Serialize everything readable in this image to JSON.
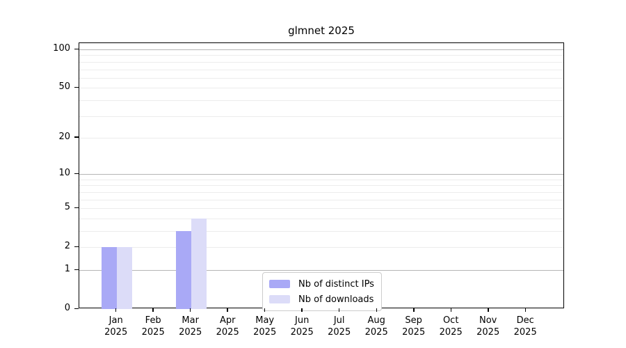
{
  "chart_data": {
    "type": "bar",
    "title": "glmnet 2025",
    "year": "2025",
    "categories": [
      "Jan",
      "Feb",
      "Mar",
      "Apr",
      "May",
      "Jun",
      "Jul",
      "Aug",
      "Sep",
      "Oct",
      "Nov",
      "Dec"
    ],
    "series": [
      {
        "name": "Nb of distinct IPs",
        "color": "#a9a9f6",
        "values": [
          2,
          0,
          3,
          0,
          0,
          0,
          0,
          0,
          0,
          0,
          0,
          0
        ]
      },
      {
        "name": "Nb of downloads",
        "color": "#dcdcf8",
        "values": [
          2,
          0,
          4,
          0,
          0,
          0,
          0,
          0,
          0,
          0,
          0,
          0
        ]
      }
    ],
    "yscale": "log1p",
    "ylim": [
      0,
      100
    ],
    "ytick_labels": [
      100,
      50,
      20,
      10,
      5,
      2,
      1,
      0
    ],
    "major_gridlines": [
      1,
      10,
      100
    ],
    "minor_gridlines": [
      2,
      3,
      4,
      5,
      6,
      7,
      8,
      9,
      20,
      30,
      40,
      50,
      60,
      70,
      80,
      90
    ],
    "grid": "on",
    "legend_position": "lower-center",
    "xlabel": "",
    "ylabel": ""
  },
  "colors": {
    "bar_distinct_ips": "#a9a9f6",
    "bar_downloads": "#dcdcf8",
    "major_grid": "#b5b5b5",
    "minor_grid": "#ececec",
    "axis": "#000000",
    "legend_border": "#cccccc",
    "background": "#ffffff"
  }
}
